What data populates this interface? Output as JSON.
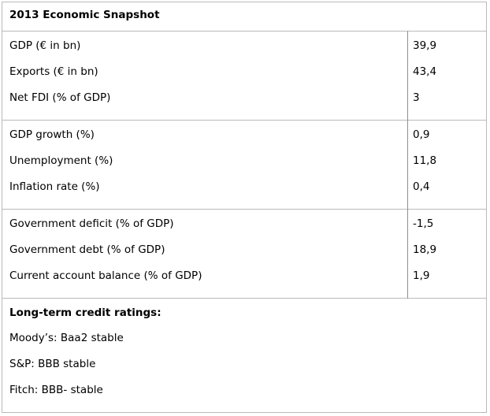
{
  "title": "2013 Economic Snapshot",
  "groups": [
    {
      "rows": [
        {
          "label": "GDP (€ in bn)",
          "value": "39,9"
        },
        {
          "label": "Exports (€ in bn)",
          "value": "43,4"
        },
        {
          "label": "Net FDI (% of GDP)",
          "value": "3"
        }
      ]
    },
    {
      "rows": [
        {
          "label": "GDP growth (%)",
          "value": "0,9"
        },
        {
          "label": "Unemployment (%)",
          "value": "11,8"
        },
        {
          "label": "Inflation rate (%)",
          "value": "0,4"
        }
      ]
    },
    {
      "rows": [
        {
          "label": "Government deficit (% of GDP)",
          "value": "-1,5"
        },
        {
          "label": "Government debt (% of GDP)",
          "value": "18,9"
        },
        {
          "label": "Current account balance (% of GDP)",
          "value": "1,9"
        }
      ]
    }
  ],
  "ratings": {
    "title": "Long-term credit ratings:",
    "items": [
      "Moody’s: Baa2 stable",
      "S&P: BBB stable",
      "Fitch: BBB- stable"
    ]
  }
}
